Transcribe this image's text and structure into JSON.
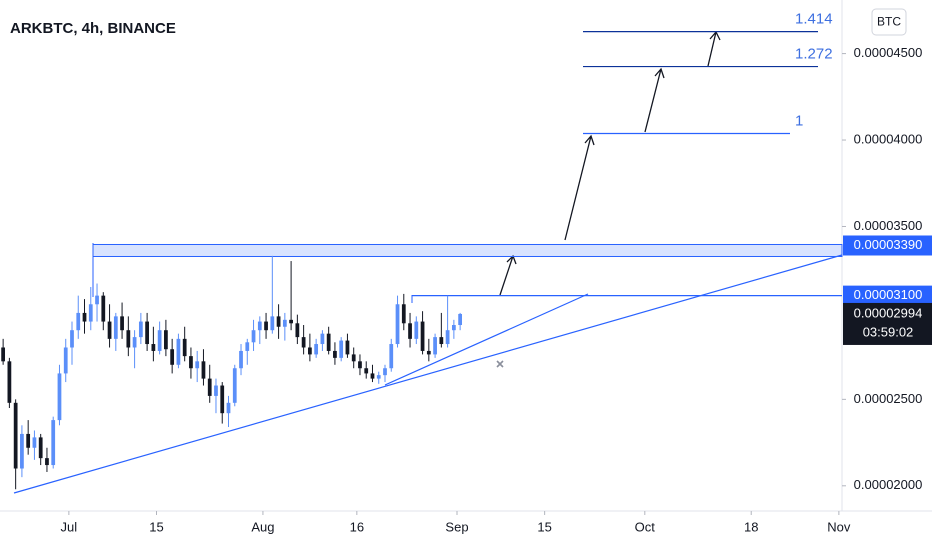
{
  "chart_data": {
    "type": "candlestick",
    "title": "ARKBTC, 4h, BINANCE",
    "currency": "BTC",
    "x": [
      0,
      1,
      2,
      3,
      4,
      5,
      6,
      7,
      8,
      9,
      10,
      11,
      12,
      13,
      14,
      15,
      16,
      17,
      18,
      19,
      20,
      21,
      22,
      23,
      24,
      25,
      26,
      27,
      28,
      29,
      30,
      31,
      32,
      33,
      34,
      35,
      36,
      37,
      38,
      39,
      40,
      41,
      42,
      43,
      44,
      45,
      46,
      47,
      48,
      49,
      50,
      51,
      52,
      53,
      54,
      55,
      56,
      57,
      58,
      59,
      60,
      61,
      62,
      63,
      64,
      65,
      66,
      67,
      68,
      69,
      70,
      71,
      72,
      73
    ],
    "open": [
      2.8e-05,
      2.72e-05,
      2.48e-05,
      2.1e-05,
      2.3e-05,
      2.22e-05,
      2.28e-05,
      2.16e-05,
      2.12e-05,
      2.38e-05,
      2.65e-05,
      2.8e-05,
      2.9e-05,
      3e-05,
      2.95e-05,
      3.05e-05,
      3.1e-05,
      2.95e-05,
      2.85e-05,
      2.98e-05,
      2.9e-05,
      2.8e-05,
      2.86e-05,
      2.95e-05,
      2.82e-05,
      2.78e-05,
      2.9e-05,
      2.79e-05,
      2.7e-05,
      2.85e-05,
      2.75e-05,
      2.68e-05,
      2.72e-05,
      2.62e-05,
      2.52e-05,
      2.58e-05,
      2.42e-05,
      2.48e-05,
      2.68e-05,
      2.78e-05,
      2.83e-05,
      2.9e-05,
      2.95e-05,
      2.9e-05,
      2.98e-05,
      2.92e-05,
      2.96e-05,
      2.94e-05,
      2.86e-05,
      2.8e-05,
      2.76e-05,
      2.82e-05,
      2.88e-05,
      2.78e-05,
      2.74e-05,
      2.84e-05,
      2.76e-05,
      2.72e-05,
      2.68e-05,
      2.65e-05,
      2.62e-05,
      2.64e-05,
      2.68e-05,
      2.82e-05,
      3.05e-05,
      2.94e-05,
      2.85e-05,
      2.95e-05,
      2.78e-05,
      2.76e-05,
      2.86e-05,
      2.82e-05,
      2.9e-05,
      2.93e-05
    ],
    "high": [
      2.85e-05,
      2.74e-05,
      2.5e-05,
      2.35e-05,
      2.38e-05,
      2.32e-05,
      2.3e-05,
      2.22e-05,
      2.4e-05,
      2.7e-05,
      2.85e-05,
      2.95e-05,
      3.1e-05,
      3.08e-05,
      3.15e-05,
      3.17e-05,
      3.12e-05,
      3.05e-05,
      3e-05,
      3.06e-05,
      2.98e-05,
      2.9e-05,
      3e-05,
      3e-05,
      2.92e-05,
      2.95e-05,
      2.96e-05,
      2.85e-05,
      2.88e-05,
      2.92e-05,
      2.8e-05,
      2.78e-05,
      2.79e-05,
      2.7e-05,
      2.62e-05,
      2.6e-05,
      2.52e-05,
      2.7e-05,
      2.82e-05,
      2.85e-05,
      2.96e-05,
      2.98e-05,
      3e-05,
      3.33e-05,
      3.05e-05,
      3e-05,
      3.3e-05,
      2.99e-05,
      2.93e-05,
      2.88e-05,
      2.85e-05,
      2.9e-05,
      2.92e-05,
      2.83e-05,
      2.86e-05,
      2.88e-05,
      2.8e-05,
      2.76e-05,
      2.72e-05,
      2.7e-05,
      2.66e-05,
      2.7e-05,
      2.85e-05,
      3.1e-05,
      3.11e-05,
      3e-05,
      2.98e-05,
      3.01e-05,
      2.85e-05,
      2.88e-05,
      3e-05,
      3.1e-05,
      2.96e-05,
      3e-05
    ],
    "low": [
      2.7e-05,
      2.45e-05,
      1.98e-05,
      2.05e-05,
      2.18e-05,
      2.15e-05,
      2.12e-05,
      2.08e-05,
      2.1e-05,
      2.35e-05,
      2.6e-05,
      2.7e-05,
      2.85e-05,
      2.88e-05,
      2.9e-05,
      2.95e-05,
      2.9e-05,
      2.8e-05,
      2.78e-05,
      2.85e-05,
      2.75e-05,
      2.68e-05,
      2.82e-05,
      2.78e-05,
      2.72e-05,
      2.76e-05,
      2.75e-05,
      2.65e-05,
      2.68e-05,
      2.72e-05,
      2.62e-05,
      2.6e-05,
      2.58e-05,
      2.48e-05,
      2.42e-05,
      2.36e-05,
      2.34e-05,
      2.46e-05,
      2.64e-05,
      2.7e-05,
      2.78e-05,
      2.82e-05,
      2.85e-05,
      2.88e-05,
      2.85e-05,
      2.84e-05,
      2.9e-05,
      2.82e-05,
      2.76e-05,
      2.72e-05,
      2.74e-05,
      2.78e-05,
      2.76e-05,
      2.7e-05,
      2.72e-05,
      2.74e-05,
      2.68e-05,
      2.64e-05,
      2.62e-05,
      2.6e-05,
      2.59e-05,
      2.6e-05,
      2.66e-05,
      2.8e-05,
      2.9e-05,
      2.8e-05,
      2.82e-05,
      2.76e-05,
      2.72e-05,
      2.74e-05,
      2.8e-05,
      2.8e-05,
      2.85e-05,
      2.9e-05
    ],
    "close": [
      2.72e-05,
      2.48e-05,
      2.1e-05,
      2.3e-05,
      2.22e-05,
      2.28e-05,
      2.16e-05,
      2.12e-05,
      2.38e-05,
      2.65e-05,
      2.8e-05,
      2.9e-05,
      3e-05,
      2.95e-05,
      3.05e-05,
      3.1e-05,
      2.95e-05,
      2.85e-05,
      2.98e-05,
      2.9e-05,
      2.8e-05,
      2.86e-05,
      2.95e-05,
      2.82e-05,
      2.78e-05,
      2.9e-05,
      2.79e-05,
      2.7e-05,
      2.85e-05,
      2.75e-05,
      2.68e-05,
      2.72e-05,
      2.62e-05,
      2.52e-05,
      2.58e-05,
      2.42e-05,
      2.48e-05,
      2.68e-05,
      2.78e-05,
      2.83e-05,
      2.9e-05,
      2.95e-05,
      2.9e-05,
      2.98e-05,
      2.92e-05,
      2.96e-05,
      2.94e-05,
      2.86e-05,
      2.8e-05,
      2.76e-05,
      2.82e-05,
      2.88e-05,
      2.78e-05,
      2.74e-05,
      2.84e-05,
      2.76e-05,
      2.72e-05,
      2.68e-05,
      2.65e-05,
      2.62e-05,
      2.64e-05,
      2.68e-05,
      2.82e-05,
      3.05e-05,
      2.94e-05,
      2.85e-05,
      2.95e-05,
      2.78e-05,
      2.76e-05,
      2.86e-05,
      2.82e-05,
      2.9e-05,
      2.93e-05,
      2.994e-05
    ],
    "up_color": "#5b8ff9",
    "down_color": "#131722",
    "xlim": [
      -0.5,
      134
    ],
    "xticks": [
      {
        "value": 10.5,
        "label": "Jul"
      },
      {
        "value": 24.5,
        "label": "15"
      },
      {
        "value": 41.5,
        "label": "Aug"
      },
      {
        "value": 56.5,
        "label": "16"
      },
      {
        "value": 72.5,
        "label": "Sep"
      },
      {
        "value": 86.5,
        "label": "15"
      },
      {
        "value": 102.5,
        "label": "Oct"
      },
      {
        "value": 119.5,
        "label": "18"
      },
      {
        "value": 133.5,
        "label": "Nov"
      }
    ],
    "ylim": [
      1.86e-05,
      4.81e-05
    ],
    "yticks": [
      {
        "value": 2e-05,
        "label": "0.00002000"
      },
      {
        "value": 2.5e-05,
        "label": "0.00002500"
      },
      {
        "value": 3.5e-05,
        "label": "0.00003500"
      },
      {
        "value": 4e-05,
        "label": "0.00004000"
      },
      {
        "value": 4.5e-05,
        "label": "0.00004500"
      }
    ],
    "price_labels": [
      {
        "value": 3.39e-05,
        "label": "0.00003390",
        "color": "#2962ff"
      },
      {
        "value": 3.1e-05,
        "label": "0.00003100",
        "color": "#2962ff"
      }
    ],
    "last_price": {
      "value": 2.994e-05,
      "label": "0.00002994",
      "countdown": "03:59:02",
      "color": "#131722"
    },
    "fib_levels": [
      {
        "label": "1",
        "value": 4.038e-05
      },
      {
        "label": "1.272",
        "value": 4.425e-05
      },
      {
        "label": "1.414",
        "value": 4.627e-05
      }
    ]
  }
}
